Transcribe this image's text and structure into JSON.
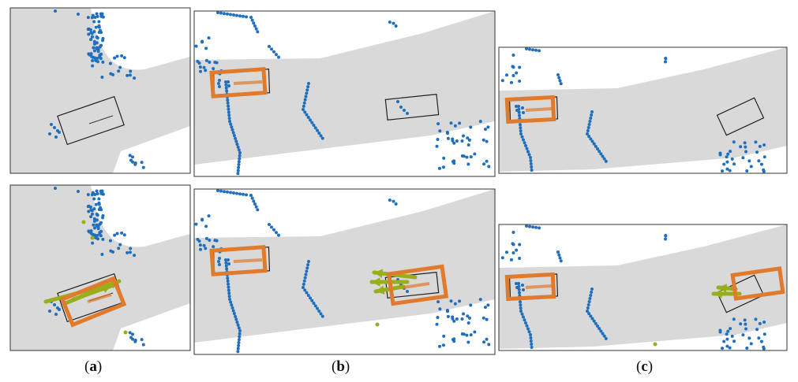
{
  "captions": {
    "a": "a",
    "b": "b",
    "c": "c"
  },
  "colors": {
    "road": "#d9d9d9",
    "points": "#1f6fbf",
    "ego_box": "#e07a2c",
    "track_box": "#e07a2c",
    "velocity": "#9aad1a",
    "ref_box": "#222222"
  }
}
